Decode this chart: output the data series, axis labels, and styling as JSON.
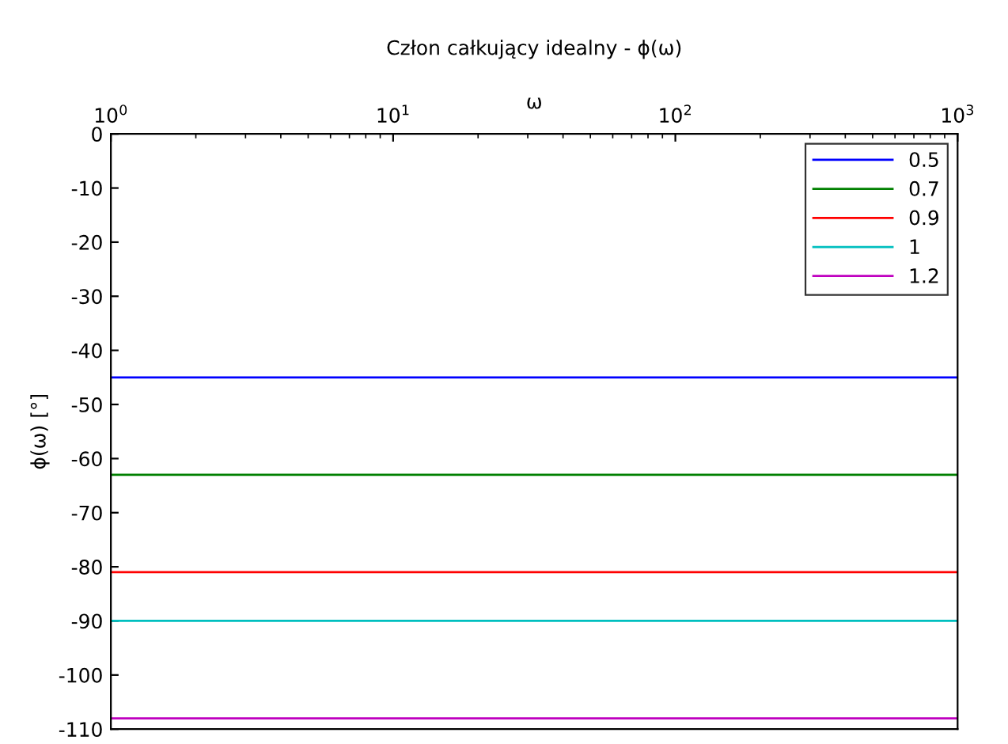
{
  "chart_data": {
    "type": "line",
    "title": "Człon całkujący idealny - ϕ(ω)",
    "xlabel": "ω",
    "ylabel": "ϕ(ω) [°]",
    "log": "x",
    "x": [
      1,
      1000
    ],
    "series": [
      {
        "name": "0.5",
        "color": "#0000ff",
        "values": [
          -45,
          -45
        ]
      },
      {
        "name": "0.7",
        "color": "#008000",
        "values": [
          -63,
          -63
        ]
      },
      {
        "name": "0.9",
        "color": "#ff0000",
        "values": [
          -81,
          -81
        ]
      },
      {
        "name": "1",
        "color": "#00bfbf",
        "values": [
          -90,
          -90
        ]
      },
      {
        "name": "1.2",
        "color": "#bf00bf",
        "values": [
          -108,
          -108
        ]
      }
    ],
    "xlim": [
      1,
      1000
    ],
    "xticks": [
      {
        "value": 1,
        "label": "10$^{0}$"
      },
      {
        "value": 10,
        "label": "10$^{1}$"
      },
      {
        "value": 100,
        "label": "10$^{2}$"
      },
      {
        "value": 1000,
        "label": "10$^{3}$"
      }
    ],
    "ylim": [
      -110,
      0
    ],
    "yticks": [
      0,
      -10,
      -20,
      -30,
      -40,
      -50,
      -60,
      -70,
      -80,
      -90,
      -100,
      -110
    ],
    "grid": false,
    "legend": "top right",
    "marker": "none",
    "line_style": "solid"
  }
}
